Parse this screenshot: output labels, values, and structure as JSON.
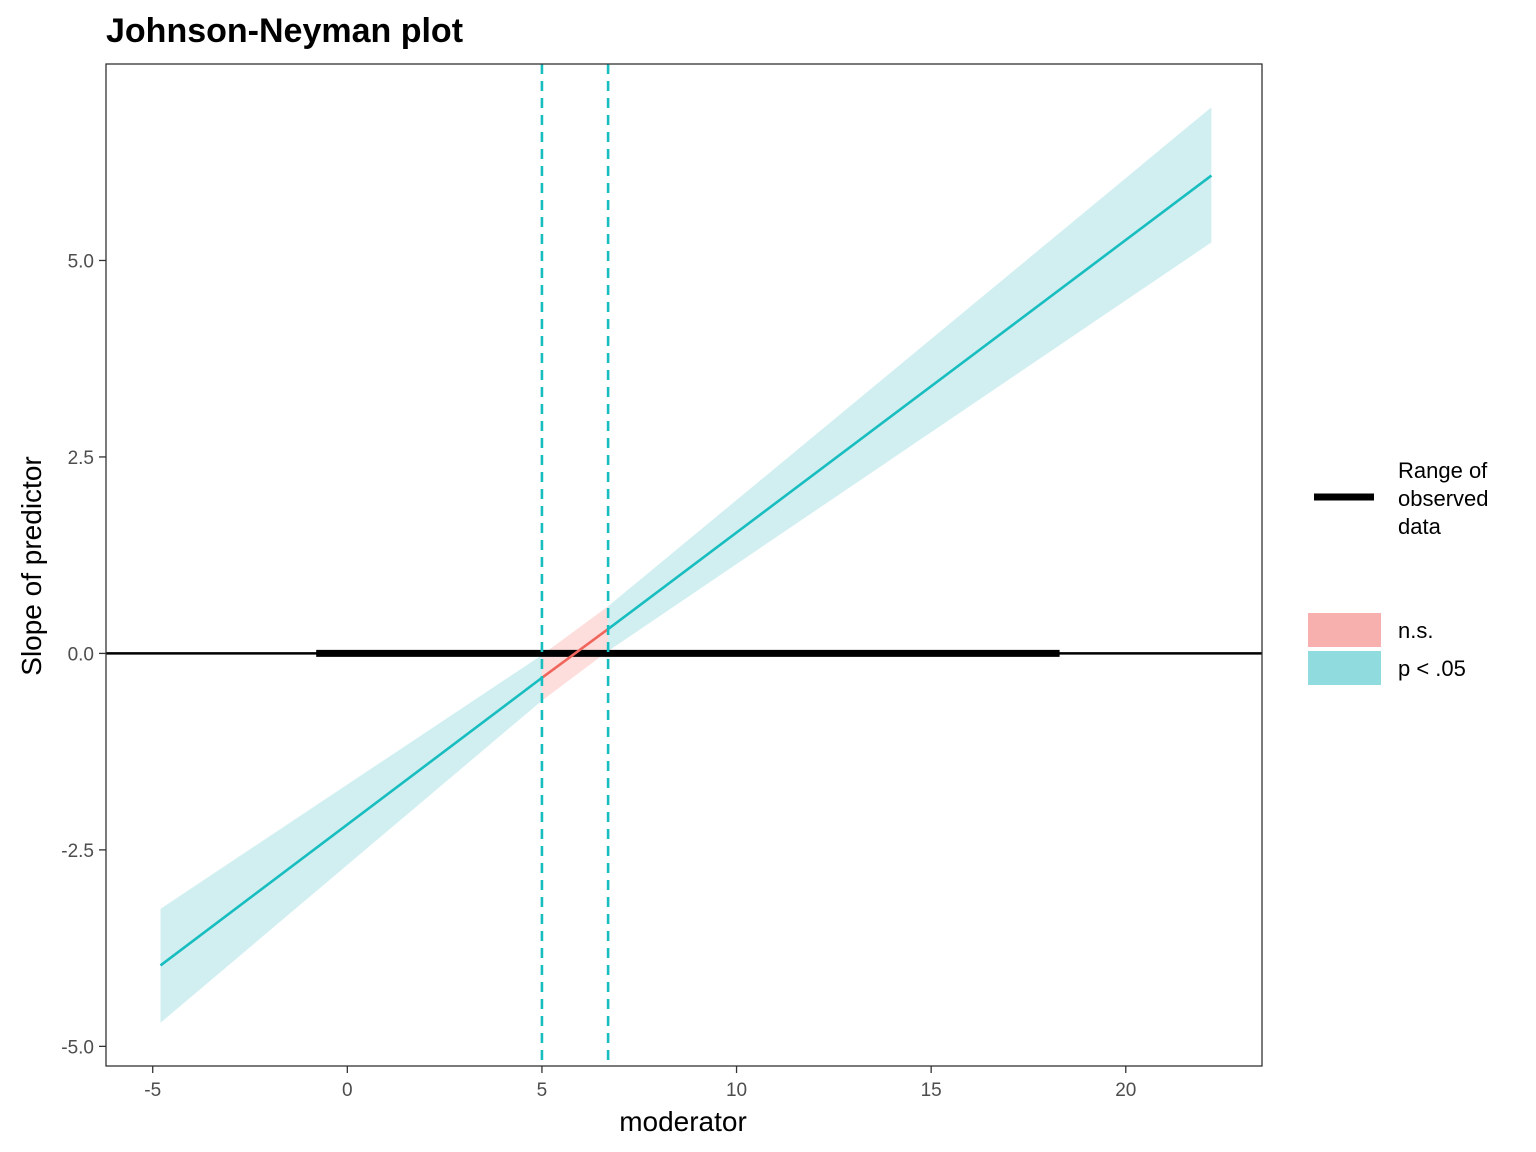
{
  "chart_data": {
    "type": "line",
    "title": "Johnson-Neyman plot",
    "xlabel": "moderator",
    "ylabel": "Slope of predictor",
    "xlim": [
      -6.2,
      23.5
    ],
    "ylim": [
      -5.25,
      7.5
    ],
    "x_ticks": [
      -5,
      0,
      5,
      10,
      15,
      20
    ],
    "x_tick_labels": [
      "-5",
      "0",
      "5",
      "10",
      "15",
      "20"
    ],
    "y_ticks": [
      -5.0,
      -2.5,
      0.0,
      2.5,
      5.0
    ],
    "y_tick_labels": [
      "-5.0",
      "-2.5",
      "0.0",
      "2.5",
      "5.0"
    ],
    "grid": false,
    "legend_position": "right",
    "zero_line": 0,
    "jn_bounds": [
      5.0,
      6.7
    ],
    "observed_range": {
      "label": "Range of observed data",
      "x": [
        -0.8,
        18.3
      ]
    },
    "series": [
      {
        "name": "p < .05",
        "color": "#18bdbf",
        "fill": "#d1eff1",
        "x": [
          -4.8,
          5.0
        ],
        "y": [
          -3.97,
          -0.31
        ],
        "lower": [
          -4.7,
          -0.6
        ],
        "upper": [
          -3.25,
          -0.02
        ]
      },
      {
        "name": "n.s.",
        "color": "#f0665d",
        "fill": "#fddedc",
        "x": [
          5.0,
          6.7
        ],
        "y": [
          -0.31,
          0.31
        ],
        "lower": [
          -0.6,
          0.03
        ],
        "upper": [
          -0.02,
          0.6
        ]
      },
      {
        "name": "p < .05",
        "color": "#18bdbf",
        "fill": "#d1eff1",
        "x": [
          6.7,
          22.2
        ],
        "y": [
          0.31,
          6.08
        ],
        "lower": [
          0.03,
          5.23
        ],
        "upper": [
          0.6,
          6.95
        ]
      }
    ],
    "legend": {
      "line_label_lines": [
        "Range of",
        "observed",
        "data"
      ],
      "items": [
        {
          "label": "n.s.",
          "color": "#f8b0ae"
        },
        {
          "label": "p < .05",
          "color": "#8fdbdd"
        }
      ]
    }
  }
}
